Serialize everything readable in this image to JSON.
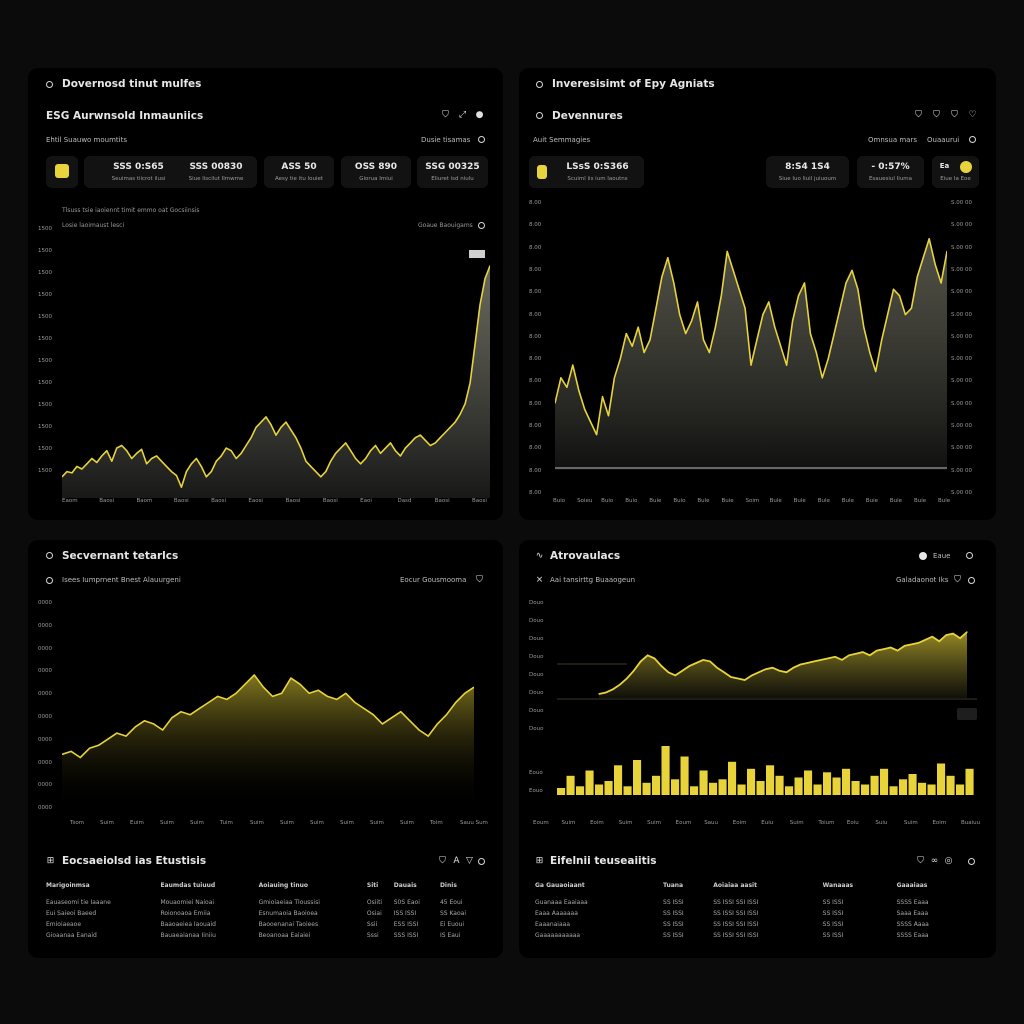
{
  "panel1": {
    "title": "Dovernosd tinut mulfes",
    "subtitle": "ESG Aurwnsold Inmauniics",
    "filter_label": "Ehtil  Suauwo moumtits",
    "filter_right": "Dusie tisamas",
    "cards": [
      {
        "value": "SSS 0:S65",
        "label": "Seuimas tiicrot  ilusi"
      },
      {
        "value": "SSS 00830",
        "label": "Siue liscilut Ilmwme"
      },
      {
        "value": "ASS 50",
        "label": "Aesy  tie itu louiet"
      },
      {
        "value": "OSS 890",
        "label": "Giorua  Imiui"
      },
      {
        "value": "SSG 00325",
        "label": "Eliuret  isd  niulu"
      }
    ],
    "chart_caption": "Tlsuss  tsie  iaoiennt  timit  emmo  oat  Gocsiinsis",
    "chart_legend": "Losie laoimaust lesci",
    "chart_right": "Goaue Baouigams",
    "y_ticks": [
      "1500",
      "1500",
      "1500",
      "1500",
      "1500",
      "1500",
      "1500",
      "1500",
      "1500",
      "1500",
      "1500",
      "1500"
    ],
    "x_ticks": [
      "Eaom",
      "Baosi",
      "Baom",
      "Baosi",
      "Baosi",
      "Eaosi",
      "Baosi",
      "Baosi",
      "Eaoi",
      "Dasd",
      "Baosi",
      "Baosi"
    ],
    "chart_data": {
      "type": "area",
      "values": [
        1380,
        1420,
        1410,
        1460,
        1440,
        1480,
        1520,
        1490,
        1540,
        1580,
        1500,
        1600,
        1620,
        1580,
        1520,
        1560,
        1590,
        1480,
        1520,
        1540,
        1500,
        1460,
        1420,
        1390,
        1300,
        1420,
        1480,
        1520,
        1460,
        1380,
        1420,
        1500,
        1540,
        1600,
        1580,
        1520,
        1560,
        1620,
        1680,
        1760,
        1800,
        1840,
        1780,
        1700,
        1760,
        1800,
        1740,
        1680,
        1600,
        1500,
        1460,
        1420,
        1380,
        1420,
        1500,
        1560,
        1600,
        1640,
        1580,
        1520,
        1480,
        1520,
        1580,
        1620,
        1560,
        1600,
        1640,
        1580,
        1540,
        1600,
        1640,
        1680,
        1700,
        1660,
        1620,
        1640,
        1680,
        1720,
        1760,
        1800,
        1860,
        1940,
        2100,
        2400,
        2700,
        2900,
        3000
      ]
    }
  },
  "panel2": {
    "title": "Inveresisimt of Epy Agniats",
    "subtitle": "Devennures",
    "filter_label": "Auit  Semmagies",
    "filter_right": "Omnsua mars",
    "filter_right2": "Ouaaurui",
    "cards": [
      {
        "value": "LSsS 0:S366",
        "label": "Scuiml  iis ium  Iaoutns"
      },
      {
        "value": "8:S4        1S4",
        "label": "Siue  Iuo liuil  juiuoum"
      },
      {
        "value": "-       0:57%",
        "label": "Esauesiul Iiuma"
      },
      {
        "value": "Ea",
        "label": "Eiue  Ia  Eoe"
      }
    ],
    "y_ticks_left": [
      "8.00",
      "8.00",
      "8.00",
      "8.00",
      "8.00",
      "8.00",
      "8.00",
      "8.00",
      "8.00",
      "8.00",
      "8.00",
      "8.00",
      "8.00",
      "8.00"
    ],
    "y_ticks_right": [
      "S.00 00",
      "S.00 00",
      "S.00 00",
      "S.00 00",
      "S.00 00",
      "S.00 00",
      "S.00 00",
      "S.00 00",
      "S.00 00",
      "S.00 00",
      "S.00 00",
      "S.00 00",
      "S.00 00",
      "S.00 00"
    ],
    "x_ticks": [
      "Buio",
      "Soieu",
      "Buio",
      "Buio",
      "Buie",
      "Buio",
      "Bule",
      "Buie",
      "Soim",
      "Bule",
      "Bule",
      "Bule",
      "Bule",
      "Buie",
      "Bule",
      "Buie",
      "Bule"
    ],
    "chart_data": {
      "type": "area",
      "values": [
        50,
        58,
        55,
        62,
        54,
        48,
        44,
        40,
        52,
        46,
        58,
        64,
        72,
        68,
        74,
        66,
        70,
        80,
        90,
        96,
        88,
        78,
        72,
        76,
        82,
        70,
        66,
        74,
        84,
        98,
        92,
        86,
        80,
        62,
        70,
        78,
        82,
        74,
        68,
        62,
        76,
        84,
        88,
        72,
        66,
        58,
        64,
        72,
        80,
        88,
        92,
        86,
        74,
        66,
        60,
        70,
        78,
        86,
        84,
        78,
        80,
        90,
        96,
        102,
        94,
        88,
        98
      ]
    }
  },
  "panel3": {
    "title": "Secvernant tetarlcs",
    "filter_label": "Isees  Iumprnent  Bnest  Alauurgeni",
    "filter_right": "Eocur  Gousmooma",
    "y_ticks": [
      "0000",
      "0000",
      "0000",
      "0000",
      "0000",
      "0000",
      "0000",
      "0000",
      "0000",
      "0000"
    ],
    "x_ticks": [
      "Tsom",
      "Suim",
      "Euim",
      "Suim",
      "Suim",
      "Tuim",
      "Suim",
      "Suim",
      "Suim",
      "Suim",
      "Suim",
      "Suim",
      "Toim",
      "Sauu Sum"
    ],
    "chart_data": {
      "type": "area",
      "values": [
        20,
        22,
        18,
        24,
        26,
        30,
        34,
        32,
        38,
        42,
        40,
        36,
        44,
        48,
        46,
        50,
        54,
        58,
        56,
        60,
        66,
        72,
        64,
        58,
        60,
        70,
        66,
        60,
        62,
        58,
        56,
        60,
        54,
        50,
        46,
        40,
        44,
        48,
        42,
        36,
        32,
        40,
        46,
        54,
        60,
        64
      ]
    },
    "table": {
      "title": "Eocsaeiolsd  ias  Etustisis",
      "headers": [
        "Marigoinmsa",
        "Eaumdas  tuiuud",
        "Aoiauing  tinuo",
        "Siti",
        "Dauais",
        "Dinis"
      ],
      "rows": [
        [
          "Eauaseomi  tie  Iaaane",
          "Mouaomiei  Naioai",
          "Gmioiaeiaa  Tloussisi",
          "Osiiti",
          "S0S  Eaoi",
          "45  Eoui"
        ],
        [
          "Eui  Saieoi  Baeed",
          "Roionoaoa  Emiia",
          "Esnumaoia  Baoioea",
          "Osiai",
          "ISS  ISSI",
          "SS  Kaoai"
        ],
        [
          "Emioiaeaoe",
          "Baaoaeiea  Iaouaid",
          "Baooenanai  Taoiees",
          "Ssii",
          "ESS  ISSI",
          "Ei  Euoui"
        ],
        [
          "Gioaanaa  Eanaid",
          "Bauaeaianaa  Iiniiu",
          "Beoanoaa  Eaiaiei",
          "Sssi",
          "SSS  ISSI",
          "IS  Eaui"
        ]
      ]
    }
  },
  "panel4": {
    "title": "Atrovaulacs",
    "filter_label": "Aai  tansirttg  Buaaogeun",
    "filter_right": "Galadaonot  Iks",
    "y_ticks_top": [
      "Douo",
      "Douo",
      "Douo",
      "Douo",
      "Douo",
      "Douo",
      "Douo",
      "Douo"
    ],
    "y_ticks_bottom": [
      "Eouo",
      "Eouo"
    ],
    "chip_label": "Eaue",
    "x_ticks": [
      "Eoum",
      "Suim",
      "Eoim",
      "Suim",
      "Suim",
      "Eoum",
      "Sauu",
      "Eoim",
      "Euiu",
      "Suim",
      "Toium",
      "Eoiu",
      "Suiu",
      "Suim",
      "Eoim",
      "Buaiuu"
    ],
    "chart_data": [
      {
        "type": "area",
        "values": [
          10,
          12,
          16,
          22,
          30,
          40,
          52,
          60,
          56,
          46,
          38,
          34,
          40,
          46,
          50,
          54,
          52,
          44,
          38,
          32,
          30,
          28,
          34,
          38,
          42,
          44,
          40,
          38,
          44,
          48,
          50,
          52,
          54,
          56,
          58,
          54,
          60,
          62,
          64,
          60,
          66,
          68,
          70,
          66,
          72,
          74,
          76,
          80,
          84,
          78,
          86,
          88,
          82,
          90
        ]
      },
      {
        "type": "bar",
        "values": [
          8,
          22,
          10,
          28,
          12,
          16,
          34,
          10,
          40,
          14,
          22,
          56,
          18,
          44,
          10,
          28,
          14,
          18,
          38,
          12,
          30,
          16,
          34,
          22,
          10,
          20,
          28,
          12,
          26,
          20,
          30,
          16,
          12,
          22,
          30,
          10,
          18,
          24,
          14,
          12,
          36,
          22,
          12,
          30
        ]
      }
    ],
    "table": {
      "title": "Eifelnii  teuseaiitis",
      "headers": [
        "Ga  Gauaoiaant",
        "Tuana",
        "Aoiaiaa  aasit",
        "Wanaaas",
        "Gaaaiaas"
      ],
      "rows": [
        [
          "Guanaaa  Eaaiaaa",
          "SS  ISSI",
          "SS  ISSI  SSI  ISSI",
          "SS  ISSI",
          "SSSS  Eaaa"
        ],
        [
          "Eaaa  Aaaaaaa",
          "SS  ISSI",
          "SS  ISSI  SSI  ISSI",
          "SS  ISSI",
          "Saaa  Eaaa"
        ],
        [
          "Eaaanaiaaa",
          "SS  ISSI",
          "SS  ISSI  SSI  ISSI",
          "SS  ISSI",
          "SSSS  Aaaa"
        ],
        [
          "Gaaaaaaaaaaa",
          "SS  ISSI",
          "SS  ISSI  SSI  ISSI",
          "SS  ISSI",
          "SSSS  Eaaa"
        ]
      ]
    }
  },
  "accent": "#e8d43a"
}
